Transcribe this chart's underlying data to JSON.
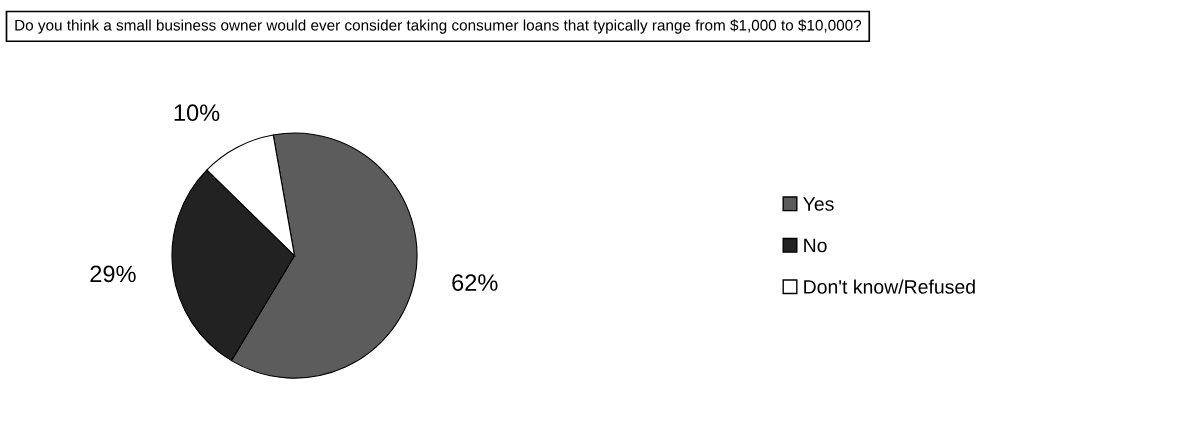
{
  "chart_data": {
    "type": "pie",
    "title": "Do you think a small business owner would ever consider taking consumer loans that typically range from $1,000 to $10,000?",
    "categories": [
      "Yes",
      "No",
      "Don't know/Refused"
    ],
    "values": [
      62,
      29,
      10
    ],
    "colors": [
      "#5c5c5c",
      "#222222",
      "#ffffff"
    ],
    "value_labels": [
      "62%",
      "29%",
      "10%"
    ],
    "legend": "right"
  }
}
